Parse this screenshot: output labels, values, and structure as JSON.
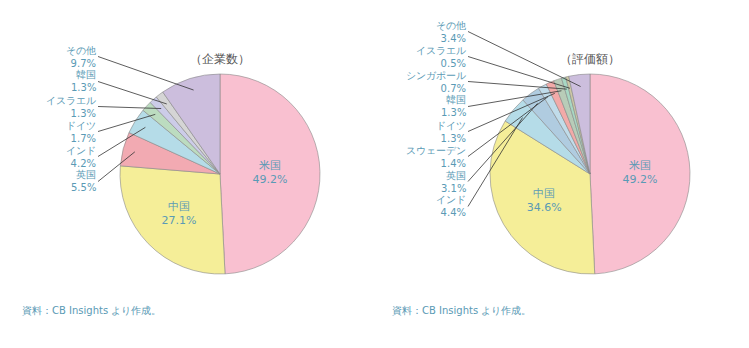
{
  "chart_data": [
    {
      "type": "pie",
      "title": "（企業数）",
      "categories": [
        "米国",
        "中国",
        "英国",
        "インド",
        "ドイツ",
        "イスラエル",
        "韓国",
        "その他"
      ],
      "values": [
        49.2,
        27.1,
        5.5,
        4.2,
        1.7,
        1.3,
        1.3,
        9.7
      ],
      "value_labels": [
        "49.2%",
        "27.1%",
        "5.5%",
        "4.2%",
        "1.7%",
        "1.3%",
        "1.3%",
        "9.7%"
      ],
      "colors": [
        "#f9c0d0",
        "#f5ee98",
        "#f2aab2",
        "#b5dce8",
        "#bcdcc0",
        "#cccce8",
        "#d5d5d5",
        "#ccbedd"
      ],
      "data_labels": true,
      "annotations": [
        "資料：CB Insights より作成。"
      ]
    },
    {
      "type": "pie",
      "title": "（評価額）",
      "categories": [
        "米国",
        "中国",
        "インド",
        "英国",
        "スウェーデン",
        "ドイツ",
        "韓国",
        "シンガポール",
        "イスラエル",
        "その他"
      ],
      "values": [
        49.2,
        34.6,
        4.4,
        3.1,
        1.4,
        1.3,
        1.3,
        0.7,
        0.5,
        3.4
      ],
      "value_labels": [
        "49.2%",
        "34.6%",
        "4.4%",
        "3.1%",
        "1.4%",
        "1.3%",
        "1.3%",
        "0.7%",
        "0.5%",
        "3.4%"
      ],
      "colors": [
        "#f9c0d0",
        "#f5ee98",
        "#b5dce8",
        "#b0cce0",
        "#c0dcea",
        "#f2aaa8",
        "#b8ccb8",
        "#a8d8c4",
        "#ccc8a4",
        "#ccbedd"
      ],
      "data_labels": true,
      "annotations": [
        "資料：CB Insights より作成。"
      ]
    }
  ]
}
